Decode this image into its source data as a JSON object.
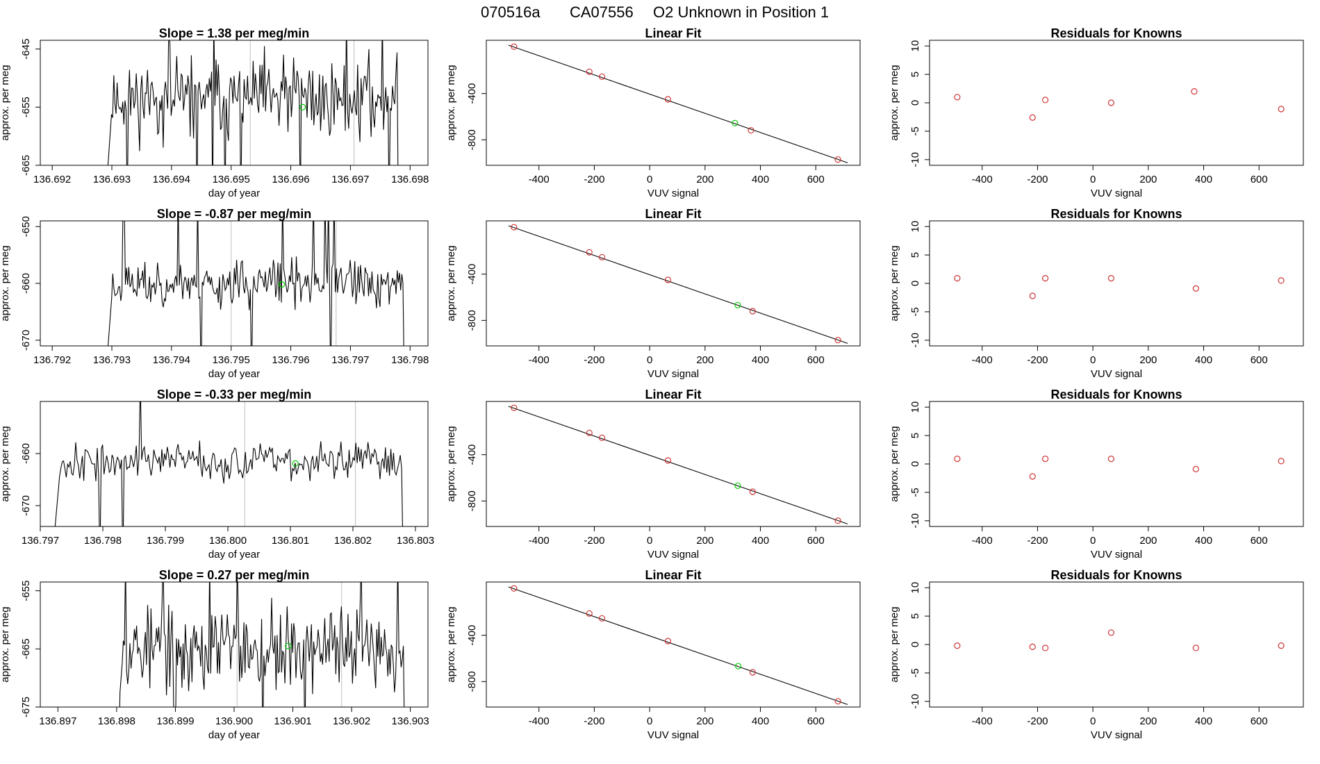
{
  "header": {
    "date": "070516a",
    "tank": "CA07556",
    "label": "O2 Unknown in Position  1"
  },
  "colors": {
    "line": "#000000",
    "known": "#cd3333",
    "unknown": "#00cc00",
    "gridline": "#bebebe"
  },
  "chart_data": [
    {
      "type": "line",
      "row": 1,
      "title": "Slope =  1.38  per meg/min",
      "xlabel": "day of year",
      "ylabel": "approx. per meg",
      "xlim": [
        136.6918,
        136.6983
      ],
      "ylim": [
        -665,
        -643.5
      ],
      "xticks": [
        136.692,
        136.693,
        136.694,
        136.695,
        136.696,
        136.697,
        136.698
      ],
      "xtick_labels": [
        "136.692",
        "136.693",
        "136.694",
        "136.695",
        "136.696",
        "136.697",
        "136.698"
      ],
      "yticks": [
        -665,
        -655,
        -645
      ],
      "ytick_labels": [
        "-665",
        "-655",
        "-645"
      ],
      "series": {
        "x0": 136.6929,
        "x1": 136.6978,
        "mean": -653.5,
        "noise": 4.2,
        "seed": 11
      },
      "vlines": [
        136.69532,
        136.69706
      ],
      "unknown_point": {
        "x": 136.6962,
        "y": -655.0
      }
    },
    {
      "type": "scatter",
      "row": 1,
      "title": "Linear Fit",
      "xlabel": "VUV signal",
      "ylabel": "approx. per meg",
      "xlim": [
        -590,
        760
      ],
      "ylim": [
        -1020,
        60
      ],
      "xticks": [
        -400,
        -200,
        0,
        200,
        400,
        600
      ],
      "xtick_labels": [
        "-400",
        "-200",
        "0",
        "200",
        "400",
        "600"
      ],
      "yticks": [
        -800,
        -400
      ],
      "ytick_labels": [
        "-800",
        "-400"
      ],
      "fit": {
        "x": [
          -510,
          715
        ],
        "y": [
          18,
          -998
        ]
      },
      "known_points": [
        {
          "x": -490,
          "y": 5
        },
        {
          "x": -218,
          "y": -212
        },
        {
          "x": -172,
          "y": -254
        },
        {
          "x": 66,
          "y": -450
        },
        {
          "x": 366,
          "y": -718
        },
        {
          "x": 680,
          "y": -970
        }
      ],
      "unknown_point": {
        "x": 308,
        "y": -655
      }
    },
    {
      "type": "scatter",
      "row": 1,
      "title": "Residuals for Knowns",
      "xlabel": "VUV signal",
      "ylabel": "approx. per meg",
      "xlim": [
        -590,
        760
      ],
      "ylim": [
        -11,
        11
      ],
      "xticks": [
        -400,
        -200,
        0,
        200,
        400,
        600
      ],
      "xtick_labels": [
        "-400",
        "-200",
        "0",
        "200",
        "400",
        "600"
      ],
      "yticks": [
        -10,
        -5,
        0,
        5,
        10
      ],
      "ytick_labels": [
        "-10",
        "-5",
        "0",
        "5",
        "10"
      ],
      "known_points": [
        {
          "x": -490,
          "y": 1.0
        },
        {
          "x": -218,
          "y": -2.6
        },
        {
          "x": -172,
          "y": 0.5
        },
        {
          "x": 66,
          "y": 0.0
        },
        {
          "x": 366,
          "y": 2.0
        },
        {
          "x": 680,
          "y": -1.1
        }
      ]
    },
    {
      "type": "line",
      "row": 2,
      "title": "Slope =  -0.87  per meg/min",
      "xlabel": "day of year",
      "ylabel": "approx. per meg",
      "xlim": [
        136.7918,
        136.7983
      ],
      "ylim": [
        -671,
        -649
      ],
      "xticks": [
        136.792,
        136.793,
        136.794,
        136.795,
        136.796,
        136.797,
        136.798
      ],
      "xtick_labels": [
        "136.792",
        "136.793",
        "136.794",
        "136.795",
        "136.796",
        "136.797",
        "136.798"
      ],
      "yticks": [
        -670,
        -660,
        -650
      ],
      "ytick_labels": [
        "-670",
        "-660",
        "-650"
      ],
      "series": {
        "x0": 136.7929,
        "x1": 136.7979,
        "mean": -660,
        "noise": 2.6,
        "seed": 23
      },
      "vlines": [
        136.795,
        136.79676
      ],
      "unknown_point": {
        "x": 136.79585,
        "y": -660.2
      }
    },
    {
      "type": "scatter",
      "row": 2,
      "title": "Linear Fit",
      "xlabel": "VUV signal",
      "ylabel": "approx. per meg",
      "xlim": [
        -590,
        760
      ],
      "ylim": [
        -1020,
        60
      ],
      "xticks": [
        -400,
        -200,
        0,
        200,
        400,
        600
      ],
      "xtick_labels": [
        "-400",
        "-200",
        "0",
        "200",
        "400",
        "600"
      ],
      "yticks": [
        -800,
        -400
      ],
      "ytick_labels": [
        "-800",
        "-400"
      ],
      "fit": {
        "x": [
          -510,
          715
        ],
        "y": [
          18,
          -998
        ]
      },
      "known_points": [
        {
          "x": -490,
          "y": 5
        },
        {
          "x": -218,
          "y": -212
        },
        {
          "x": -172,
          "y": -254
        },
        {
          "x": 66,
          "y": -450
        },
        {
          "x": 372,
          "y": -720
        },
        {
          "x": 680,
          "y": -970
        }
      ],
      "unknown_point": {
        "x": 318,
        "y": -668
      }
    },
    {
      "type": "scatter",
      "row": 2,
      "title": "Residuals for Knowns",
      "xlabel": "VUV signal",
      "ylabel": "approx. per meg",
      "xlim": [
        -590,
        760
      ],
      "ylim": [
        -11,
        11
      ],
      "xticks": [
        -400,
        -200,
        0,
        200,
        400,
        600
      ],
      "xtick_labels": [
        "-400",
        "-200",
        "0",
        "200",
        "400",
        "600"
      ],
      "yticks": [
        -10,
        -5,
        0,
        5,
        10
      ],
      "ytick_labels": [
        "-10",
        "-5",
        "0",
        "5",
        "10"
      ],
      "known_points": [
        {
          "x": -490,
          "y": 0.9
        },
        {
          "x": -218,
          "y": -2.2
        },
        {
          "x": -172,
          "y": 0.9
        },
        {
          "x": 66,
          "y": 0.9
        },
        {
          "x": 372,
          "y": -0.9
        },
        {
          "x": 680,
          "y": 0.5
        }
      ]
    },
    {
      "type": "line",
      "row": 3,
      "title": "Slope =  -0.33  per meg/min",
      "xlabel": "day of year",
      "ylabel": "approx. per meg",
      "xlim": [
        136.797,
        136.8032
      ],
      "ylim": [
        -674,
        -650
      ],
      "xticks": [
        136.797,
        136.798,
        136.799,
        136.8,
        136.801,
        136.802,
        136.803
      ],
      "xtick_labels": [
        "136.797",
        "136.798",
        "136.799",
        "136.800",
        "136.801",
        "136.802",
        "136.803"
      ],
      "yticks": [
        -670,
        -660
      ],
      "ytick_labels": [
        "-670",
        "-660"
      ],
      "series": {
        "x0": 136.7972,
        "x1": 136.8028,
        "mean": -661.5,
        "noise": 2.2,
        "seed": 37
      },
      "vlines": [
        136.80027,
        136.80204
      ],
      "unknown_point": {
        "x": 136.80108,
        "y": -661.9
      }
    },
    {
      "type": "scatter",
      "row": 3,
      "title": "Linear Fit",
      "xlabel": "VUV signal",
      "ylabel": "approx. per meg",
      "xlim": [
        -590,
        760
      ],
      "ylim": [
        -1020,
        60
      ],
      "xticks": [
        -400,
        -200,
        0,
        200,
        400,
        600
      ],
      "xtick_labels": [
        "-400",
        "-200",
        "0",
        "200",
        "400",
        "600"
      ],
      "yticks": [
        -800,
        -400
      ],
      "ytick_labels": [
        "-800",
        "-400"
      ],
      "fit": {
        "x": [
          -510,
          715
        ],
        "y": [
          18,
          -998
        ]
      },
      "known_points": [
        {
          "x": -490,
          "y": 5
        },
        {
          "x": -218,
          "y": -212
        },
        {
          "x": -172,
          "y": -254
        },
        {
          "x": 66,
          "y": -450
        },
        {
          "x": 372,
          "y": -720
        },
        {
          "x": 680,
          "y": -970
        }
      ],
      "unknown_point": {
        "x": 318,
        "y": -668
      }
    },
    {
      "type": "scatter",
      "row": 3,
      "title": "Residuals for Knowns",
      "xlabel": "VUV signal",
      "ylabel": "approx. per meg",
      "xlim": [
        -590,
        760
      ],
      "ylim": [
        -11,
        11
      ],
      "xticks": [
        -400,
        -200,
        0,
        200,
        400,
        600
      ],
      "xtick_labels": [
        "-400",
        "-200",
        "0",
        "200",
        "400",
        "600"
      ],
      "yticks": [
        -10,
        -5,
        0,
        5,
        10
      ],
      "ytick_labels": [
        "-10",
        "-5",
        "0",
        "5",
        "10"
      ],
      "known_points": [
        {
          "x": -490,
          "y": 0.9
        },
        {
          "x": -218,
          "y": -2.2
        },
        {
          "x": -172,
          "y": 0.9
        },
        {
          "x": 66,
          "y": 0.9
        },
        {
          "x": 372,
          "y": -0.9
        },
        {
          "x": 680,
          "y": 0.5
        }
      ]
    },
    {
      "type": "line",
      "row": 4,
      "title": "Slope =  0.27  per meg/min",
      "xlabel": "day of year",
      "ylabel": "approx. per meg",
      "xlim": [
        136.8967,
        136.9033
      ],
      "ylim": [
        -675,
        -653.5
      ],
      "xticks": [
        136.897,
        136.898,
        136.899,
        136.9,
        136.901,
        136.902,
        136.903
      ],
      "xtick_labels": [
        "136.897",
        "136.898",
        "136.899",
        "136.900",
        "136.901",
        "136.902",
        "136.903"
      ],
      "yticks": [
        -675,
        -665,
        -655
      ],
      "ytick_labels": [
        "-675",
        "-665",
        "-655"
      ],
      "series": {
        "x0": 136.898,
        "x1": 136.9029,
        "mean": -665,
        "noise": 4.5,
        "seed": 53
      },
      "vlines": [
        136.90005,
        136.90183
      ],
      "unknown_point": {
        "x": 136.90092,
        "y": -664.5
      }
    },
    {
      "type": "scatter",
      "row": 4,
      "title": "Linear Fit",
      "xlabel": "VUV signal",
      "ylabel": "approx. per meg",
      "xlim": [
        -590,
        760
      ],
      "ylim": [
        -1020,
        60
      ],
      "xticks": [
        -400,
        -200,
        0,
        200,
        400,
        600
      ],
      "xtick_labels": [
        "-400",
        "-200",
        "0",
        "200",
        "400",
        "600"
      ],
      "yticks": [
        -800,
        -400
      ],
      "ytick_labels": [
        "-800",
        "-400"
      ],
      "fit": {
        "x": [
          -510,
          715
        ],
        "y": [
          18,
          -998
        ]
      },
      "known_points": [
        {
          "x": -490,
          "y": 5
        },
        {
          "x": -218,
          "y": -212
        },
        {
          "x": -172,
          "y": -254
        },
        {
          "x": 66,
          "y": -450
        },
        {
          "x": 372,
          "y": -720
        },
        {
          "x": 680,
          "y": -970
        }
      ],
      "unknown_point": {
        "x": 320,
        "y": -667
      }
    },
    {
      "type": "scatter",
      "row": 4,
      "title": "Residuals for Knowns",
      "xlabel": "VUV signal",
      "ylabel": "approx. per meg",
      "xlim": [
        -590,
        760
      ],
      "ylim": [
        -11,
        11
      ],
      "xticks": [
        -400,
        -200,
        0,
        200,
        400,
        600
      ],
      "xtick_labels": [
        "-400",
        "-200",
        "0",
        "200",
        "400",
        "600"
      ],
      "yticks": [
        -10,
        -5,
        0,
        5,
        10
      ],
      "ytick_labels": [
        "-10",
        "-5",
        "0",
        "5",
        "10"
      ],
      "known_points": [
        {
          "x": -490,
          "y": -0.2
        },
        {
          "x": -218,
          "y": -0.4
        },
        {
          "x": -172,
          "y": -0.6
        },
        {
          "x": 66,
          "y": 2.1
        },
        {
          "x": 372,
          "y": -0.6
        },
        {
          "x": 680,
          "y": -0.2
        }
      ]
    }
  ]
}
